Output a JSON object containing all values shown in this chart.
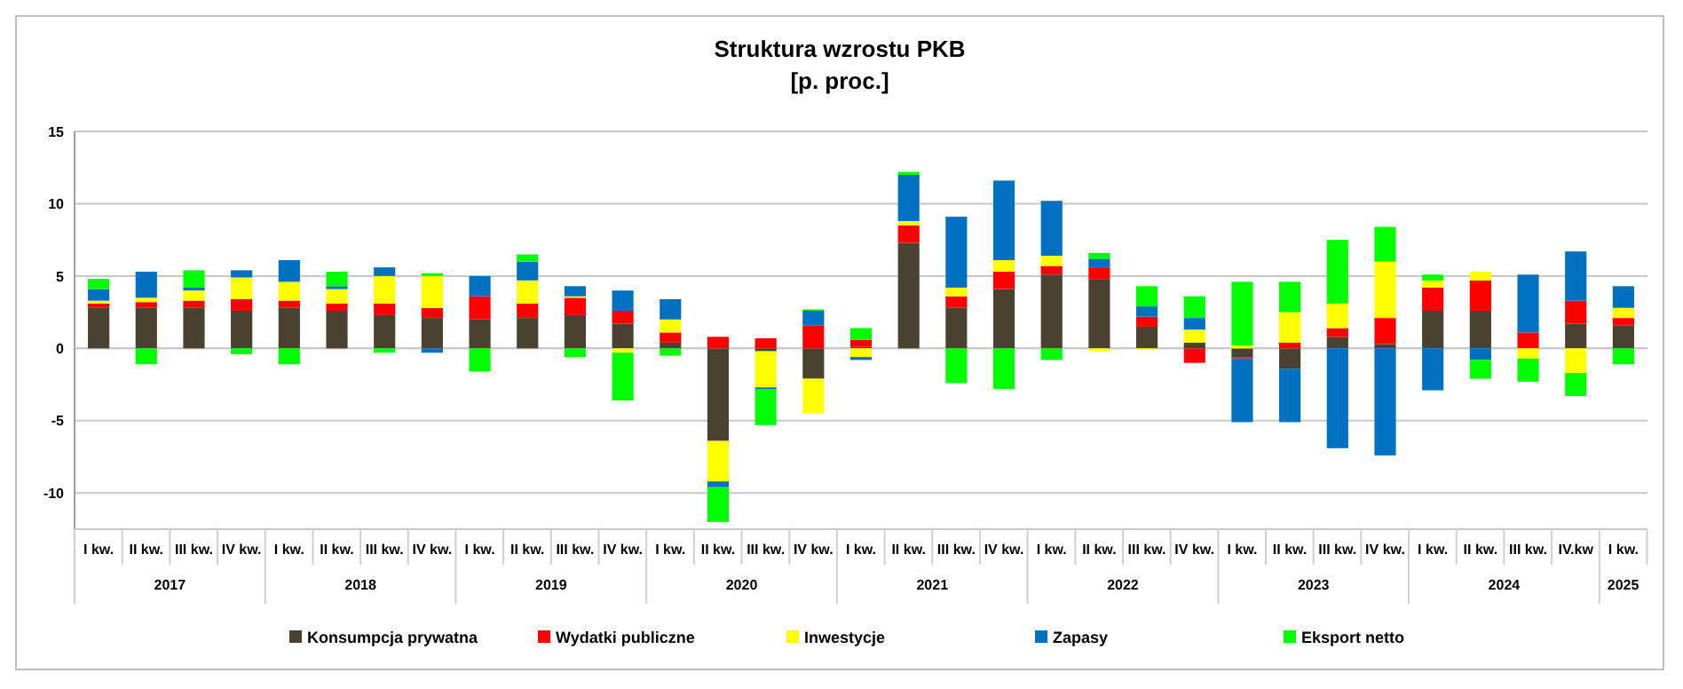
{
  "chart_data": {
    "type": "bar",
    "stacked": true,
    "title": "Struktura wzrostu PKB",
    "subtitle": "[p. proc.]",
    "categories": [
      "I kw.",
      "II kw.",
      "III kw.",
      "IV kw.",
      "I kw.",
      "II kw.",
      "III kw.",
      "IV kw.",
      "I kw.",
      "II kw.",
      "III kw.",
      "IV kw.",
      "I kw.",
      "II kw.",
      "III kw.",
      "IV kw.",
      "I kw.",
      "II kw.",
      "III kw.",
      "IV kw.",
      "I kw.",
      "II kw.",
      "III kw.",
      "IV kw.",
      "I kw.",
      "II kw.",
      "III kw.",
      "IV kw.",
      "I kw.",
      "II kw.",
      "III kw.",
      "IV.kw",
      "I kw."
    ],
    "annotations": [
      "2017",
      "2018",
      "2019",
      "2020",
      "2021",
      "2022",
      "2023",
      "2024",
      "2025"
    ],
    "series": [
      {
        "name": "Konsumpcja prywatna",
        "color": "#4a4230",
        "values": [
          2.8,
          2.8,
          2.8,
          2.6,
          2.8,
          2.6,
          2.3,
          2.1,
          2.0,
          2.1,
          2.3,
          1.7,
          0.4,
          -6.4,
          -0.2,
          -2.1,
          0.1,
          7.3,
          2.8,
          4.1,
          5.1,
          4.8,
          1.5,
          0.4,
          -0.6,
          -1.4,
          0.8,
          0.3,
          2.6,
          2.6,
          0,
          1.7,
          1.6
        ]
      },
      {
        "name": "Wydatki publiczne",
        "color": "#ff0000",
        "values": [
          0.3,
          0.4,
          0.5,
          0.8,
          0.5,
          0.5,
          0.8,
          0.7,
          1.6,
          1.0,
          1.2,
          0.9,
          0.7,
          0.8,
          0.7,
          1.6,
          0.5,
          1.2,
          0.8,
          1.2,
          0.6,
          0.8,
          0.7,
          -1.0,
          -0.1,
          0.4,
          0.6,
          1.8,
          1.6,
          2.1,
          1.1,
          1.6,
          0.5
        ]
      },
      {
        "name": "Inwestycje",
        "color": "#ffff00",
        "values": [
          0.2,
          0.3,
          0.7,
          1.5,
          1.3,
          1.0,
          1.9,
          2.2,
          0,
          1.6,
          0.1,
          -0.3,
          0.9,
          -2.8,
          -2.5,
          -2.4,
          -0.6,
          0.3,
          0.6,
          0.8,
          0.7,
          -0.2,
          -0.1,
          0.9,
          0.2,
          2.1,
          1.7,
          3.9,
          0.5,
          0.6,
          -0.7,
          -1.7,
          0.7
        ]
      },
      {
        "name": "Zapasy",
        "color": "#0070c0",
        "values": [
          0.8,
          1.8,
          0.2,
          0.5,
          1.5,
          0.2,
          0.6,
          -0.3,
          1.4,
          1.3,
          0.7,
          1.4,
          1.4,
          -0.4,
          -0.1,
          1.0,
          -0.2,
          3.2,
          4.9,
          5.5,
          3.8,
          0.6,
          0.7,
          0.8,
          -4.4,
          -3.7,
          -6.9,
          -7.4,
          -2.9,
          -0.8,
          4.0,
          3.4,
          1.5
        ]
      },
      {
        "name": "Eksport netto",
        "color": "#00ff00",
        "values": [
          0.7,
          -1.1,
          1.2,
          -0.4,
          -1.1,
          1.0,
          -0.3,
          0.2,
          -1.6,
          0.5,
          -0.6,
          -3.3,
          -0.5,
          -2.4,
          -2.5,
          0.1,
          0.8,
          0.2,
          -2.4,
          -2.8,
          -0.8,
          0.4,
          1.4,
          1.5,
          4.4,
          2.1,
          4.4,
          2.4,
          0.4,
          -1.3,
          -1.6,
          -1.6,
          -1.1
        ]
      }
    ],
    "ylim": [
      -12.5,
      15
    ],
    "yticks": [
      -10,
      -5,
      0,
      5,
      10,
      15
    ],
    "grid": "y",
    "legend": "bottom"
  }
}
